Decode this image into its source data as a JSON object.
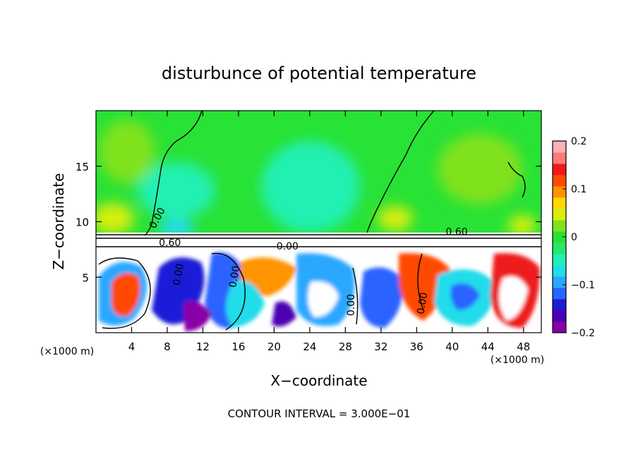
{
  "chart_data": {
    "type": "heatmap",
    "title": "disturbunce of potential temperature",
    "xlabel": "X−coordinate",
    "ylabel": "Z−coordinate",
    "x_unit_left": "(×1000 m)",
    "x_unit_right": "(×1000 m)",
    "xlim": [
      0,
      50
    ],
    "ylim": [
      0,
      20
    ],
    "x_ticks": [
      4,
      8,
      12,
      16,
      20,
      24,
      28,
      32,
      36,
      40,
      44,
      48
    ],
    "y_ticks": [
      5,
      10,
      15
    ],
    "colorbar": {
      "range": [
        -0.2,
        0.2
      ],
      "ticks": [
        {
          "value": 0.2,
          "label": "0.2"
        },
        {
          "value": 0.1,
          "label": "0.1"
        },
        {
          "value": 0,
          "label": "0"
        },
        {
          "value": -0.1,
          "label": "−0.1"
        },
        {
          "value": -0.2,
          "label": "−0.2"
        }
      ],
      "colors": [
        "#8a00a8",
        "#4b00b4",
        "#1d1ad8",
        "#2a64ff",
        "#2aa8ff",
        "#22dcea",
        "#22f0b2",
        "#25e86a",
        "#28e236",
        "#80e21a",
        "#d6ee10",
        "#ffd800",
        "#ff9400",
        "#ff4a00",
        "#ee1a1a",
        "#ff7a7a",
        "#ffb0b0"
      ]
    },
    "contour_labels": [
      {
        "text": "0.00",
        "x": 7.2,
        "y": 10.2,
        "rotate": -62
      },
      {
        "text": "0.60",
        "x": 40.5,
        "y": 8.8,
        "rotate": 0
      },
      {
        "text": "0.60",
        "x": 8.3,
        "y": 7.8,
        "rotate": 0
      },
      {
        "text": "0.00",
        "x": 21.5,
        "y": 7.5,
        "rotate": 0
      },
      {
        "text": "0.00",
        "x": 9.6,
        "y": 5.2,
        "rotate": -80
      },
      {
        "text": "0.00",
        "x": 15.9,
        "y": 5.0,
        "rotate": -80
      },
      {
        "text": "0.00",
        "x": 29.0,
        "y": 2.5,
        "rotate": -90
      },
      {
        "text": "0.00",
        "x": 37.0,
        "y": 2.6,
        "rotate": -80
      }
    ],
    "contour_interval_text": "CONTOUR INTERVAL = 3.000E−01"
  }
}
